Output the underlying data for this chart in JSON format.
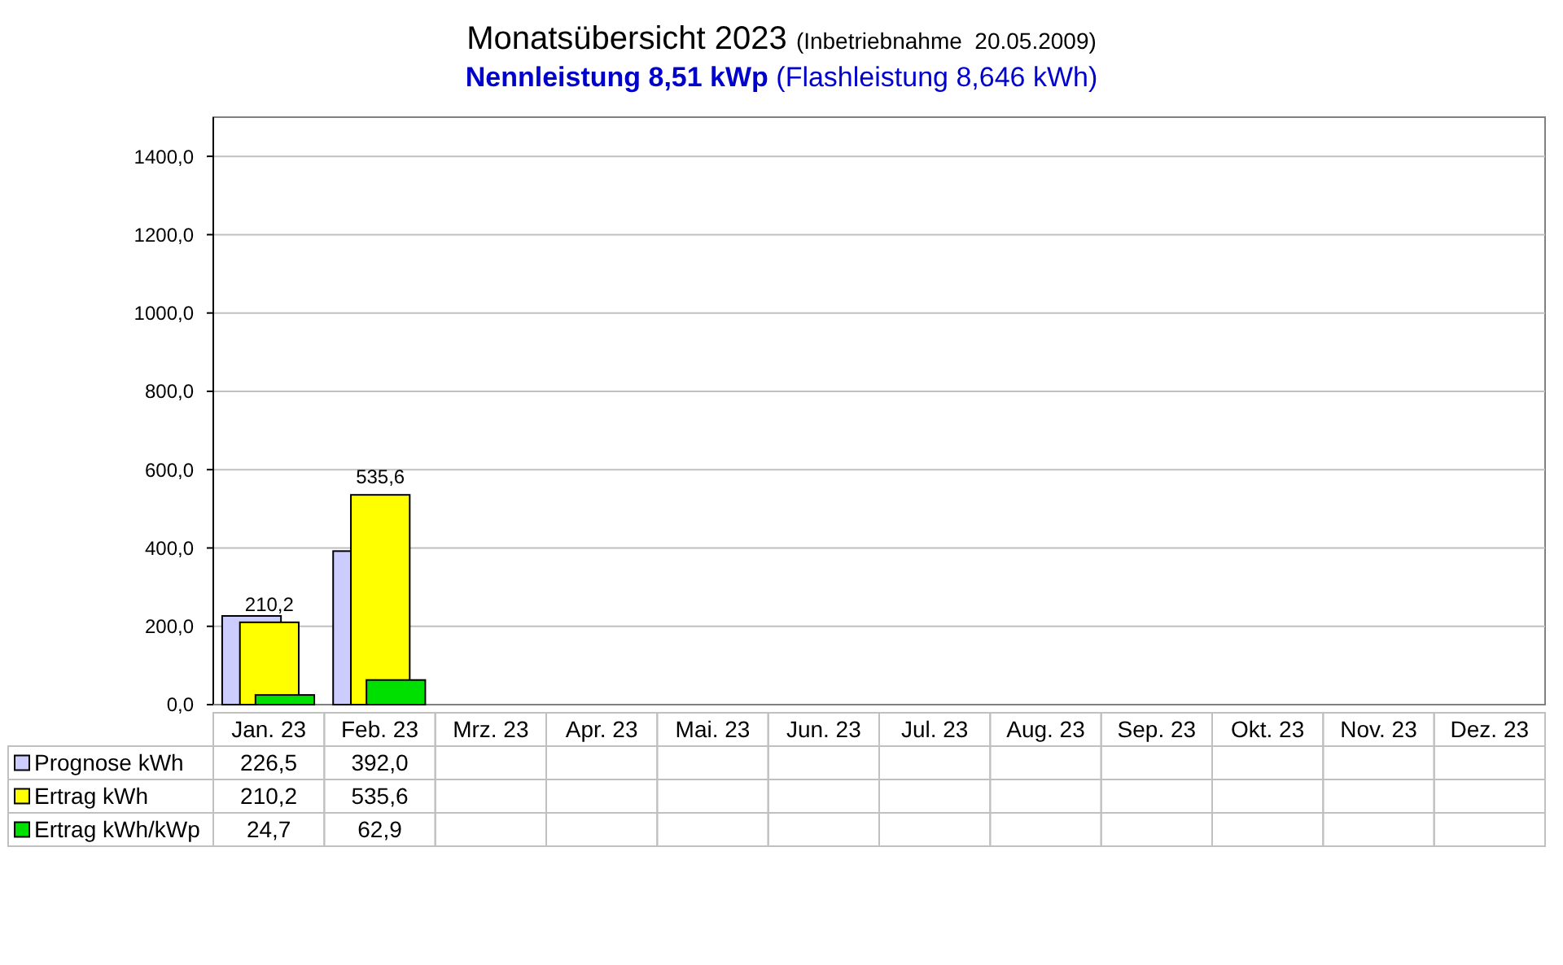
{
  "chart_data": {
    "type": "bar",
    "title": "Monatsübersicht 2023 (Inbetriebnahme  20.05.2009)",
    "subtitle": "Nennleistung 8,51 kWp (Flashleistung 8,646 kWh)",
    "categories": [
      "Jan. 23",
      "Feb. 23",
      "Mrz. 23",
      "Apr. 23",
      "Mai. 23",
      "Jun. 23",
      "Jul. 23",
      "Aug. 23",
      "Sep. 23",
      "Okt. 23",
      "Nov. 23",
      "Dez. 23"
    ],
    "series": [
      {
        "name": "Prognose kWh",
        "color": "#ccccff",
        "values": [
          226.5,
          392.0,
          null,
          null,
          null,
          null,
          null,
          null,
          null,
          null,
          null,
          null
        ],
        "value_labels": [
          "226,5",
          "392,0",
          null,
          null,
          null,
          null,
          null,
          null,
          null,
          null,
          null,
          null
        ]
      },
      {
        "name": "Ertrag kWh",
        "color": "#ffff00",
        "values": [
          210.2,
          535.6,
          null,
          null,
          null,
          null,
          null,
          null,
          null,
          null,
          null,
          null
        ],
        "value_labels": [
          "210,2",
          "535,6",
          null,
          null,
          null,
          null,
          null,
          null,
          null,
          null,
          null,
          null
        ],
        "data_labels": true
      },
      {
        "name": "Ertrag kWh/kWp",
        "color": "#00e000",
        "values": [
          24.7,
          62.9,
          null,
          null,
          null,
          null,
          null,
          null,
          null,
          null,
          null,
          null
        ],
        "value_labels": [
          "24,7",
          "62,9",
          null,
          null,
          null,
          null,
          null,
          null,
          null,
          null,
          null,
          null
        ]
      }
    ],
    "ylim": [
      0,
      1500
    ],
    "yticks": [
      {
        "value": 0,
        "label": "0,0"
      },
      {
        "value": 200,
        "label": "200,0"
      },
      {
        "value": 400,
        "label": "400,0"
      },
      {
        "value": 600,
        "label": "600,0"
      },
      {
        "value": 800,
        "label": "800,0"
      },
      {
        "value": 1000,
        "label": "1000,0"
      },
      {
        "value": 1200,
        "label": "1200,0"
      },
      {
        "value": 1400,
        "label": "1400,0"
      }
    ],
    "grid": "y",
    "legend": "bottom"
  }
}
